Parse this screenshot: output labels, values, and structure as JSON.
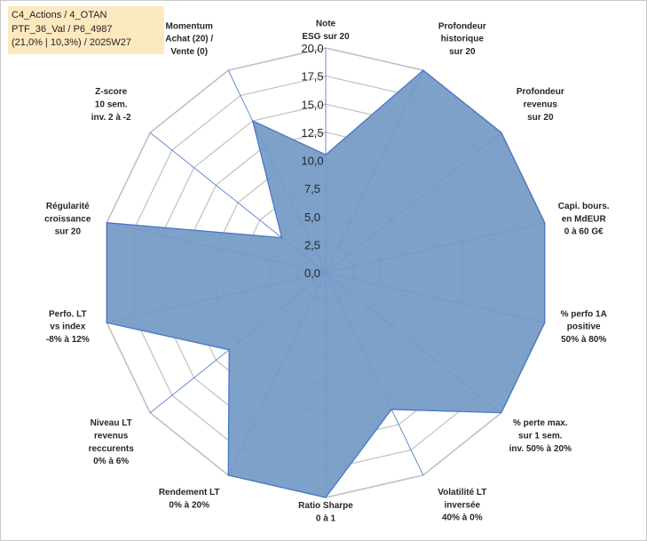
{
  "info": {
    "line1": "C4_Actions / 4_OTAN",
    "line2": "PTF_36_Val / P6_4987",
    "line3": "(21,0% | 10,3%) / 2025W27"
  },
  "colors": {
    "fill": "#7399c6",
    "stroke": "#4472c4",
    "grid": "#c0c0c0",
    "info_background": "#fde9c0"
  },
  "chart_data": {
    "type": "radar",
    "scale": {
      "min": 0,
      "max": 20,
      "step": 2.5
    },
    "tick_labels": [
      "0,0",
      "2,5",
      "5,0",
      "7,5",
      "10,0",
      "12,5",
      "15,0",
      "17,5",
      "20,0"
    ],
    "axes": [
      {
        "lines": [
          "Note",
          "ESG sur 20"
        ]
      },
      {
        "lines": [
          "Profondeur",
          "historique",
          "sur 20"
        ]
      },
      {
        "lines": [
          "Profondeur",
          "revenus",
          "sur 20"
        ]
      },
      {
        "lines": [
          "Capi. bours.",
          "en MdEUR",
          "0 à 60 G€"
        ]
      },
      {
        "lines": [
          "% perfo 1A",
          "positive",
          "50% à 80%"
        ]
      },
      {
        "lines": [
          "% perte max.",
          "sur 1 sem.",
          "inv. 50% à 20%"
        ]
      },
      {
        "lines": [
          "Volatilité LT",
          "inversée",
          "40% à 0%"
        ]
      },
      {
        "lines": [
          "Ratio Sharpe",
          "0 à 1"
        ]
      },
      {
        "lines": [
          "Rendement LT",
          "0% à 20%"
        ]
      },
      {
        "lines": [
          "Niveau LT",
          "revenus",
          "reccurents",
          "0% à 6%"
        ]
      },
      {
        "lines": [
          "Perfo. LT",
          "vs index",
          "-8% à 12%"
        ]
      },
      {
        "lines": [
          "Régularité",
          "croissance",
          "sur 20"
        ]
      },
      {
        "lines": [
          "Z-score",
          "10 sem.",
          "inv. 2 à -2"
        ]
      },
      {
        "lines": [
          "Momentum",
          "Achat (20) /",
          "Vente (0)"
        ]
      }
    ],
    "values": [
      10.5,
      20,
      20,
      20,
      20,
      20,
      13.5,
      20,
      20,
      11,
      20,
      20,
      5,
      15
    ]
  }
}
